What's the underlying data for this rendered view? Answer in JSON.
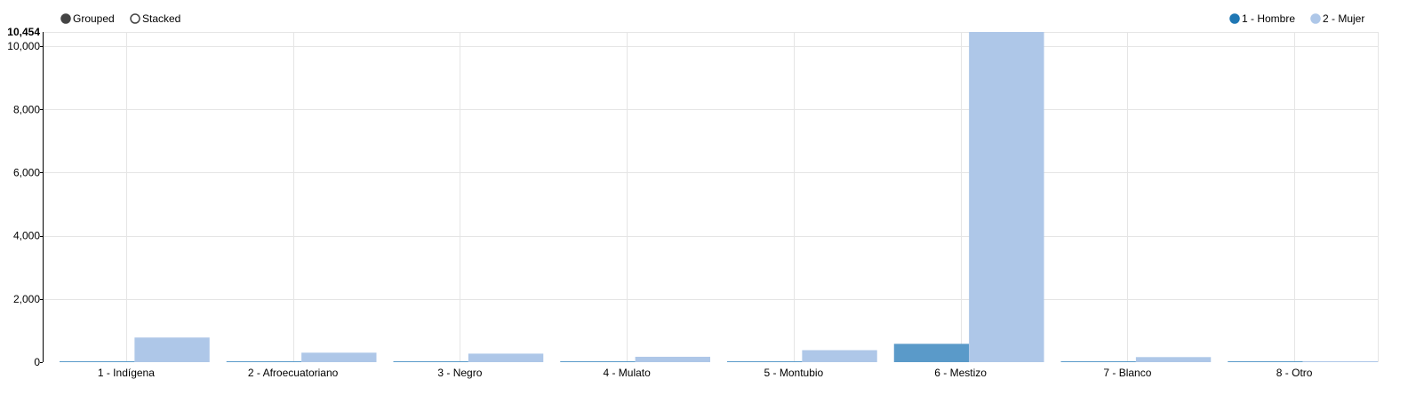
{
  "controls": {
    "options": [
      {
        "label": "Grouped",
        "selected": true
      },
      {
        "label": "Stacked",
        "selected": false
      }
    ]
  },
  "legend": {
    "placement": "top-right"
  },
  "chart_data": {
    "type": "bar",
    "mode": "grouped",
    "categories": [
      "1 - Indígena",
      "2 - Afroecuatoriano",
      "3 - Negro",
      "4 - Mulato",
      "5 - Montubio",
      "6 - Mestizo",
      "7 - Blanco",
      "8 - Otro"
    ],
    "series": [
      {
        "name": "1 - Hombre",
        "color": "#1f77b4",
        "values": [
          20,
          15,
          12,
          10,
          18,
          580,
          14,
          8
        ]
      },
      {
        "name": "2 - Mujer",
        "color": "#aec7e8",
        "values": [
          780,
          300,
          270,
          170,
          380,
          10454,
          160,
          30
        ]
      }
    ],
    "title": "",
    "xlabel": "",
    "ylabel": "",
    "ylim": [
      0,
      10454
    ],
    "yticks": [
      0,
      2000,
      4000,
      6000,
      8000,
      10000
    ],
    "ytick_labels": [
      "0",
      "2,000",
      "4,000",
      "6,000",
      "8,000",
      "10,000"
    ],
    "ymax_label": "10,454",
    "grid": true
  }
}
